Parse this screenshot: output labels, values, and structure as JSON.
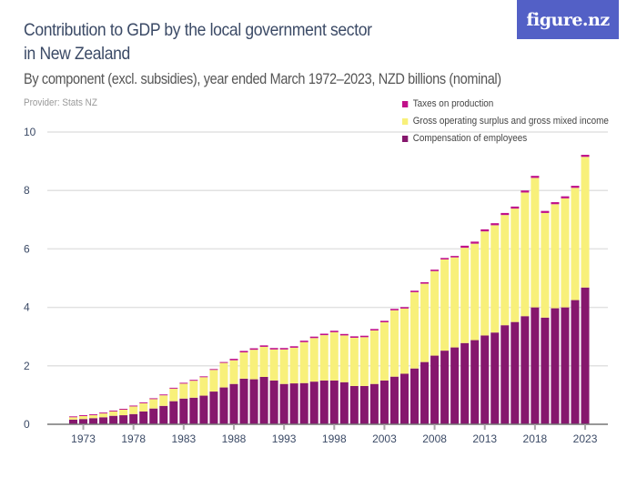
{
  "header": {
    "title_line1": "Contribution to GDP by the local government sector",
    "title_line2": "in New Zealand",
    "subtitle": "By component (excl. subsidies), year ended March 1972–2023, NZD billions (nominal)",
    "provider": "Provider: Stats NZ",
    "logo": "figure.nz"
  },
  "chart_data": {
    "type": "bar",
    "stacked": true,
    "title": "Contribution to GDP by the local government sector in New Zealand",
    "subtitle": "By component (excl. subsidies), year ended March 1972–2023, NZD billions (nominal)",
    "xlabel": "",
    "ylabel": "",
    "ylim": [
      0,
      10
    ],
    "yticks": [
      "0",
      "2",
      "4",
      "6",
      "8",
      "10"
    ],
    "xticks": [
      "1973",
      "1978",
      "1983",
      "1988",
      "1993",
      "1998",
      "2003",
      "2008",
      "2013",
      "2018",
      "2023"
    ],
    "grid": true,
    "legend_position": "top-right",
    "categories": [
      1972,
      1973,
      1974,
      1975,
      1976,
      1977,
      1978,
      1979,
      1980,
      1981,
      1982,
      1983,
      1984,
      1985,
      1986,
      1987,
      1988,
      1989,
      1990,
      1991,
      1992,
      1993,
      1994,
      1995,
      1996,
      1997,
      1998,
      1999,
      2000,
      2001,
      2002,
      2003,
      2004,
      2005,
      2006,
      2007,
      2008,
      2009,
      2010,
      2011,
      2012,
      2013,
      2014,
      2015,
      2016,
      2017,
      2018,
      2019,
      2020,
      2021,
      2022,
      2023
    ],
    "series": [
      {
        "name": "Compensation of employees",
        "color": "#86176d",
        "values": [
          0.16,
          0.18,
          0.21,
          0.24,
          0.29,
          0.31,
          0.35,
          0.44,
          0.54,
          0.63,
          0.79,
          0.88,
          0.91,
          0.98,
          1.12,
          1.26,
          1.38,
          1.56,
          1.54,
          1.62,
          1.5,
          1.38,
          1.4,
          1.41,
          1.46,
          1.5,
          1.5,
          1.44,
          1.31,
          1.31,
          1.38,
          1.5,
          1.63,
          1.73,
          1.91,
          2.13,
          2.35,
          2.52,
          2.63,
          2.78,
          2.88,
          3.04,
          3.14,
          3.39,
          3.5,
          3.7,
          4.0,
          3.65,
          3.97,
          4.0,
          4.25,
          4.68
        ]
      },
      {
        "name": "Gross operating surplus and gross mixed income",
        "color": "#f8f07a",
        "values": [
          0.08,
          0.1,
          0.1,
          0.13,
          0.15,
          0.19,
          0.26,
          0.28,
          0.32,
          0.36,
          0.43,
          0.51,
          0.58,
          0.63,
          0.74,
          0.84,
          0.81,
          0.9,
          1.01,
          1.03,
          1.06,
          1.18,
          1.22,
          1.4,
          1.49,
          1.55,
          1.65,
          1.6,
          1.65,
          1.67,
          1.83,
          1.99,
          2.27,
          2.23,
          2.61,
          2.68,
          2.89,
          3.12,
          3.08,
          3.26,
          3.3,
          3.56,
          3.67,
          3.77,
          3.88,
          4.23,
          4.43,
          3.58,
          3.56,
          3.73,
          3.84,
          4.47
        ]
      },
      {
        "name": "Taxes on production",
        "color": "#c1118a",
        "values": [
          0.03,
          0.03,
          0.03,
          0.03,
          0.03,
          0.03,
          0.03,
          0.03,
          0.03,
          0.03,
          0.03,
          0.03,
          0.03,
          0.03,
          0.03,
          0.03,
          0.05,
          0.05,
          0.05,
          0.05,
          0.05,
          0.05,
          0.05,
          0.05,
          0.05,
          0.05,
          0.05,
          0.05,
          0.05,
          0.05,
          0.05,
          0.05,
          0.05,
          0.05,
          0.05,
          0.05,
          0.05,
          0.05,
          0.05,
          0.07,
          0.07,
          0.07,
          0.07,
          0.07,
          0.07,
          0.07,
          0.07,
          0.07,
          0.07,
          0.07,
          0.07,
          0.07
        ]
      }
    ]
  }
}
